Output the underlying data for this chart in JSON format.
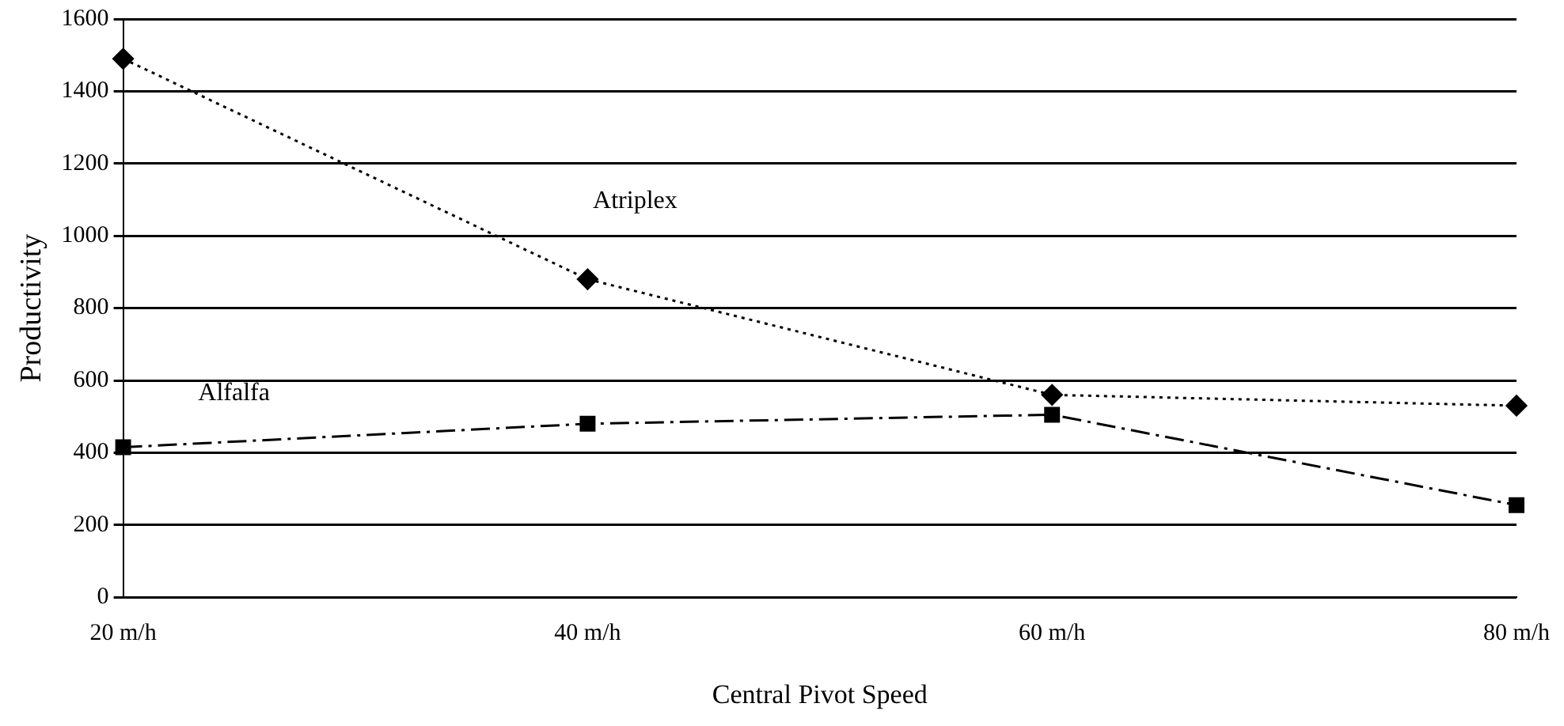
{
  "chart_data": {
    "type": "line",
    "xlabel": "Central Pivot Speed",
    "ylabel": "Productivity",
    "categories": [
      "20 m/h",
      "40 m/h",
      "60 m/h",
      "80 m/h"
    ],
    "series": [
      {
        "name": "Atriplex",
        "color": "#000000",
        "marker": "diamond",
        "line_style": "dotted",
        "values": [
          1490,
          880,
          560,
          530
        ]
      },
      {
        "name": "Alfalfa",
        "color": "#000000",
        "marker": "square",
        "line_style": "dashdot",
        "values": [
          415,
          480,
          505,
          255
        ]
      }
    ],
    "ylim": [
      0,
      1600
    ],
    "yticks": [
      0,
      200,
      400,
      600,
      800,
      1000,
      1200,
      1400,
      1600
    ],
    "grid": "y",
    "legend": false
  }
}
